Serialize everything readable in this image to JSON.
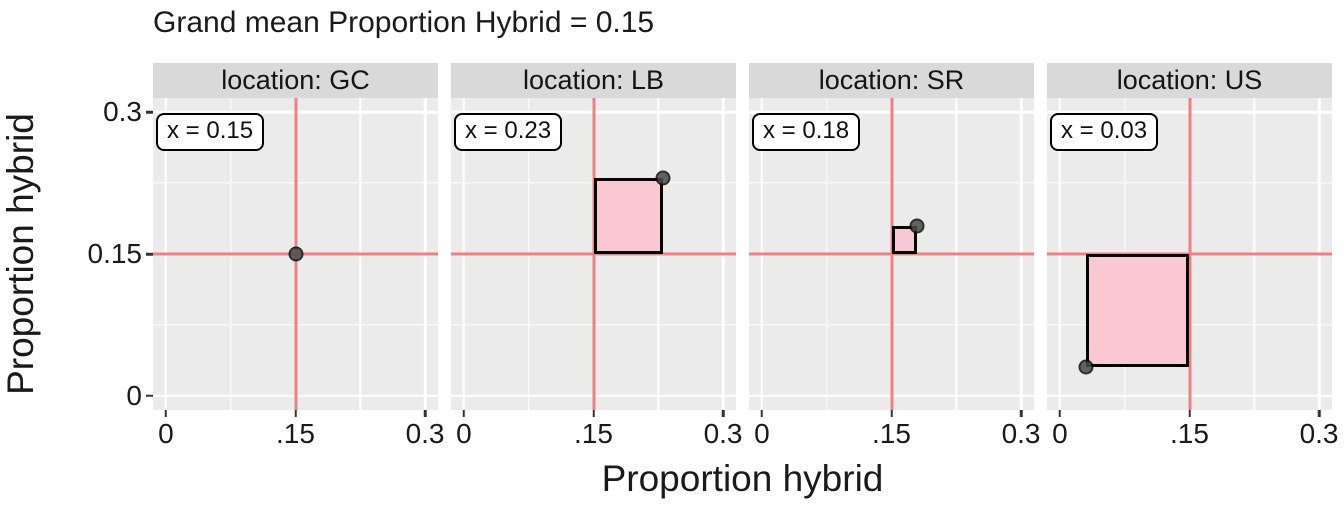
{
  "title": "Grand mean Proportion Hybrid = 0.15",
  "axes": {
    "x_title": "Proportion hybrid",
    "y_title": "Proportion hybrid"
  },
  "colors": {
    "crosshair": "#F08080",
    "square_fill": "#FAC8D2",
    "square_border": "#000000",
    "point_fill": "#4A4A4A",
    "panel_bg": "#EBEBEB",
    "strip_bg": "#D9D9D9",
    "gridline": "#FFFFFF",
    "text": "#1A1A1A"
  },
  "chart_data": {
    "type": "scatter",
    "title": "Grand mean Proportion Hybrid = 0.15",
    "xlabel": "Proportion hybrid",
    "ylabel": "Proportion hybrid",
    "facet_variable": "location",
    "grand_mean": 0.15,
    "xlim": [
      0,
      0.3
    ],
    "ylim": [
      0,
      0.3
    ],
    "expansion": 0.015,
    "grid": true,
    "x_ticks": [
      {
        "value": 0,
        "label": "0"
      },
      {
        "value": 0.15,
        "label": ".15"
      },
      {
        "value": 0.3,
        "label": "0.3"
      }
    ],
    "y_ticks": [
      {
        "value": 0.3,
        "label": "0.3"
      },
      {
        "value": 0.15,
        "label": "0.15"
      },
      {
        "value": 0,
        "label": "0"
      }
    ],
    "major_gridlines": [
      0,
      0.15,
      0.3
    ],
    "minor_gridlines": [
      0.075,
      0.225
    ],
    "panels": [
      {
        "id": "gc",
        "strip_label": "location: GC",
        "annotation": "x = 0.15",
        "group_mean": 0.15,
        "point": {
          "x": 0.15,
          "y": 0.15
        },
        "square": null
      },
      {
        "id": "lb",
        "strip_label": "location: LB",
        "annotation": "x = 0.23",
        "group_mean": 0.23,
        "point": {
          "x": 0.23,
          "y": 0.23
        },
        "square": {
          "x0": 0.15,
          "y0": 0.15,
          "x1": 0.23,
          "y1": 0.23
        }
      },
      {
        "id": "sr",
        "strip_label": "location: SR",
        "annotation": "x = 0.18",
        "group_mean": 0.18,
        "point": {
          "x": 0.18,
          "y": 0.18
        },
        "square": {
          "x0": 0.15,
          "y0": 0.15,
          "x1": 0.18,
          "y1": 0.18
        }
      },
      {
        "id": "us",
        "strip_label": "location: US",
        "annotation": "x = 0.03",
        "group_mean": 0.03,
        "point": {
          "x": 0.03,
          "y": 0.03
        },
        "square": {
          "x0": 0.03,
          "y0": 0.03,
          "x1": 0.15,
          "y1": 0.15
        }
      }
    ]
  }
}
